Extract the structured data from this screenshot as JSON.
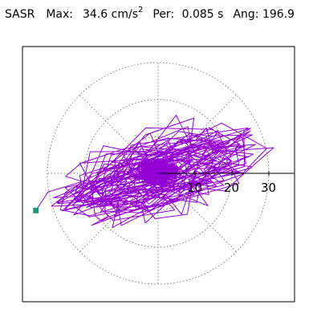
{
  "header": {
    "name": "SASR",
    "max_label": "Max:",
    "max_value": "34.6",
    "max_unit": "cm/s",
    "max_unit_exp": "2",
    "per_label": "Per:",
    "per_value": "0.085 s",
    "ang_label": "Ang:",
    "ang_value": "196.9"
  },
  "chart_data": {
    "type": "scatter",
    "title": "SASR",
    "xlabel": "",
    "ylabel": "",
    "rings": [
      10,
      20,
      30
    ],
    "ring_labels": [
      "10",
      "20",
      "30"
    ],
    "spokes_deg": [
      0,
      45,
      90,
      135,
      180,
      225,
      270,
      315
    ],
    "peak_value": 34.6,
    "peak_angle_deg": 196.9,
    "grid": true,
    "colors": {
      "orbit": "#9400d3",
      "marker": "#1a9a7c",
      "grid": "#7f7f7f",
      "axis": "#000000"
    }
  }
}
